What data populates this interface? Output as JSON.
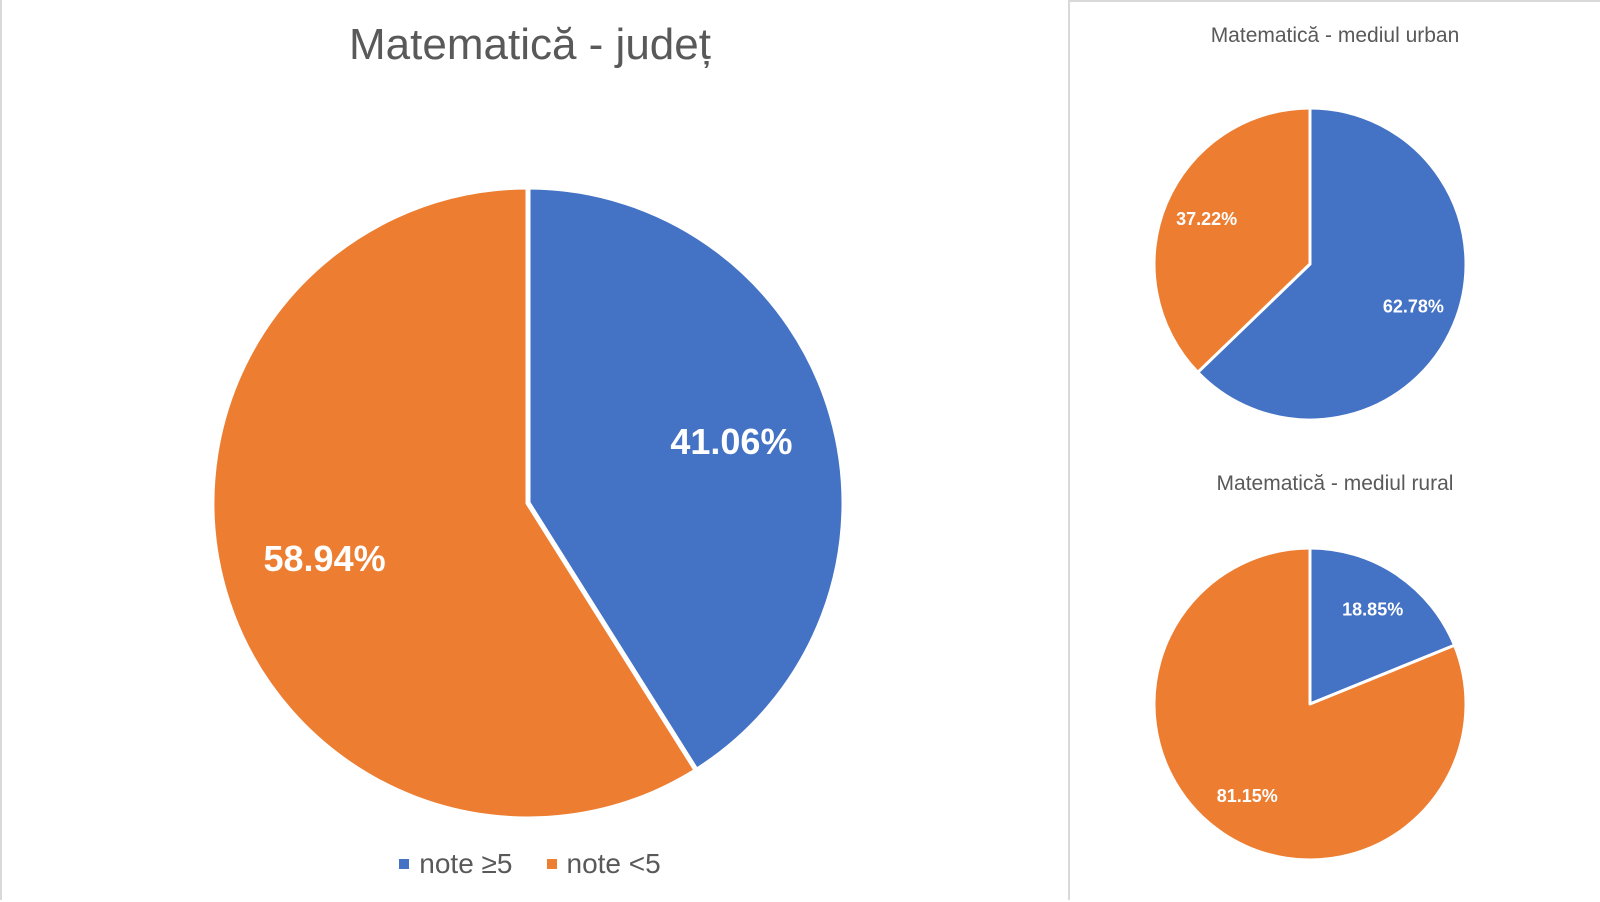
{
  "colors": {
    "blue": "#4472c4",
    "orange": "#ed7d31"
  },
  "chart_data": [
    {
      "type": "pie",
      "title": "Matematică - județ",
      "categories": [
        "note ≥5",
        "note <5"
      ],
      "values": [
        41.06,
        58.94
      ],
      "labels": [
        "41.06%",
        "58.94%"
      ],
      "colors": [
        "#4472c4",
        "#ed7d31"
      ],
      "legend": "bottom"
    },
    {
      "type": "pie",
      "title": "Matematică - mediul urban",
      "categories": [
        "note ≥5",
        "note <5"
      ],
      "values": [
        62.78,
        37.22
      ],
      "labels": [
        "62.78%",
        "37.22%"
      ],
      "colors": [
        "#4472c4",
        "#ed7d31"
      ]
    },
    {
      "type": "pie",
      "title": "Matematică - mediul rural",
      "categories": [
        "note ≥5",
        "note <5"
      ],
      "values": [
        18.85,
        81.15
      ],
      "labels": [
        "18.85%",
        "81.15%"
      ],
      "colors": [
        "#4472c4",
        "#ed7d31"
      ]
    }
  ]
}
